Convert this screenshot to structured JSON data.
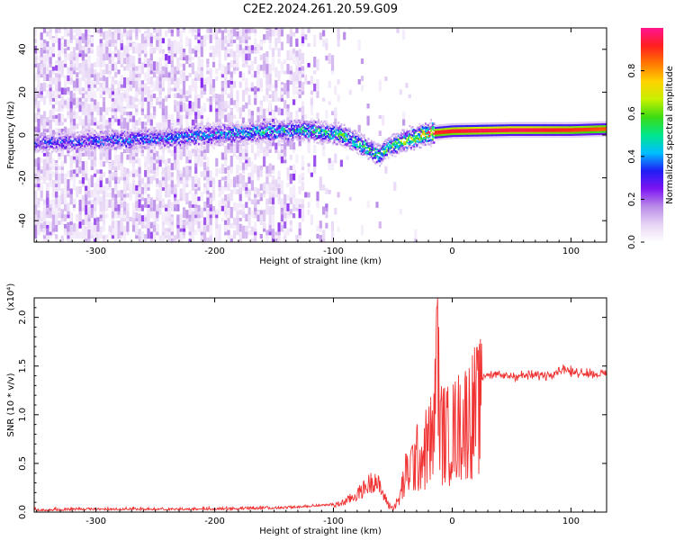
{
  "title": "C2E2.2024.261.20.59.G09",
  "chart_data": [
    {
      "type": "heatmap",
      "xlabel": "Height of straight line (km)",
      "ylabel": "Frequency (Hz)",
      "xlim": [
        -352,
        130
      ],
      "ylim": [
        -50,
        50
      ],
      "xticks": [
        -300,
        -200,
        -100,
        0,
        100
      ],
      "yticks": [
        -40,
        -20,
        0,
        20,
        40
      ],
      "colorbar": {
        "label": "Normalized spectral amplitude",
        "range": [
          0,
          1
        ],
        "ticks": [
          "0.0",
          "0.2",
          "0.4",
          "0.6",
          "0.8"
        ],
        "colormap": [
          "#ffffff",
          "#e6d4f5",
          "#b98be8",
          "#7d14f2",
          "#1e1ef5",
          "#00bfff",
          "#00e68c",
          "#3cdc14",
          "#c8f000",
          "#ffd200",
          "#ff7800",
          "#ff1e1e",
          "#ff1493"
        ]
      },
      "ridge_frequency_hz": [
        {
          "x": -350,
          "f": -4
        },
        {
          "x": -300,
          "f": -3
        },
        {
          "x": -250,
          "f": -2
        },
        {
          "x": -200,
          "f": 0
        },
        {
          "x": -150,
          "f": 1.5
        },
        {
          "x": -125,
          "f": 2
        },
        {
          "x": -110,
          "f": 1
        },
        {
          "x": -95,
          "f": 0
        },
        {
          "x": -80,
          "f": -4
        },
        {
          "x": -70,
          "f": -7
        },
        {
          "x": -62,
          "f": -10
        },
        {
          "x": -55,
          "f": -6
        },
        {
          "x": -45,
          "f": -4
        },
        {
          "x": -35,
          "f": -2
        },
        {
          "x": -20,
          "f": 0.5
        },
        {
          "x": 0,
          "f": 1.5
        },
        {
          "x": 50,
          "f": 2
        },
        {
          "x": 100,
          "f": 2
        },
        {
          "x": 130,
          "f": 2.5
        }
      ],
      "ridge_amplitude": [
        {
          "x": -350,
          "a": 0.3
        },
        {
          "x": -250,
          "a": 0.35
        },
        {
          "x": -150,
          "a": 0.45
        },
        {
          "x": -100,
          "a": 0.5
        },
        {
          "x": -60,
          "a": 0.5
        },
        {
          "x": -30,
          "a": 0.65
        },
        {
          "x": -15,
          "a": 0.95
        },
        {
          "x": 20,
          "a": 1.0
        },
        {
          "x": 60,
          "a": 1.0
        },
        {
          "x": 100,
          "a": 0.95
        },
        {
          "x": 130,
          "a": 0.9
        }
      ]
    },
    {
      "type": "line",
      "xlabel": "Height of straight line (km)",
      "ylabel": "SNR (10 * v/v)",
      "yscale_label": "(x10⁴)",
      "xlim": [
        -352,
        130
      ],
      "ylim": [
        0,
        2.2
      ],
      "xticks": [
        -300,
        -200,
        -100,
        0,
        100
      ],
      "yticks": [
        "0.0",
        "0.5",
        "1.0",
        "1.5",
        "2.0"
      ],
      "line_color": "#f03232",
      "series": [
        {
          "x": [
            -350,
            -300,
            -250,
            -200,
            -150,
            -120,
            -100,
            -90,
            -80,
            -70,
            -65,
            -60,
            -55,
            -50,
            -45,
            -40,
            -35,
            -30,
            -25,
            -20,
            -15,
            -13,
            -10,
            -5,
            0,
            10,
            20,
            30,
            40,
            60,
            80,
            95,
            100,
            110,
            120,
            130
          ],
          "values": [
            0.01,
            0.02,
            0.02,
            0.02,
            0.03,
            0.05,
            0.07,
            0.12,
            0.2,
            0.32,
            0.38,
            0.25,
            0.12,
            0.05,
            0.15,
            0.45,
            0.6,
            0.7,
            0.75,
            0.9,
            1.05,
            2.1,
            1.1,
            1.0,
            1.05,
            1.2,
            1.35,
            1.42,
            1.4,
            1.4,
            1.41,
            1.48,
            1.43,
            1.44,
            1.42,
            1.42
          ]
        }
      ]
    }
  ]
}
